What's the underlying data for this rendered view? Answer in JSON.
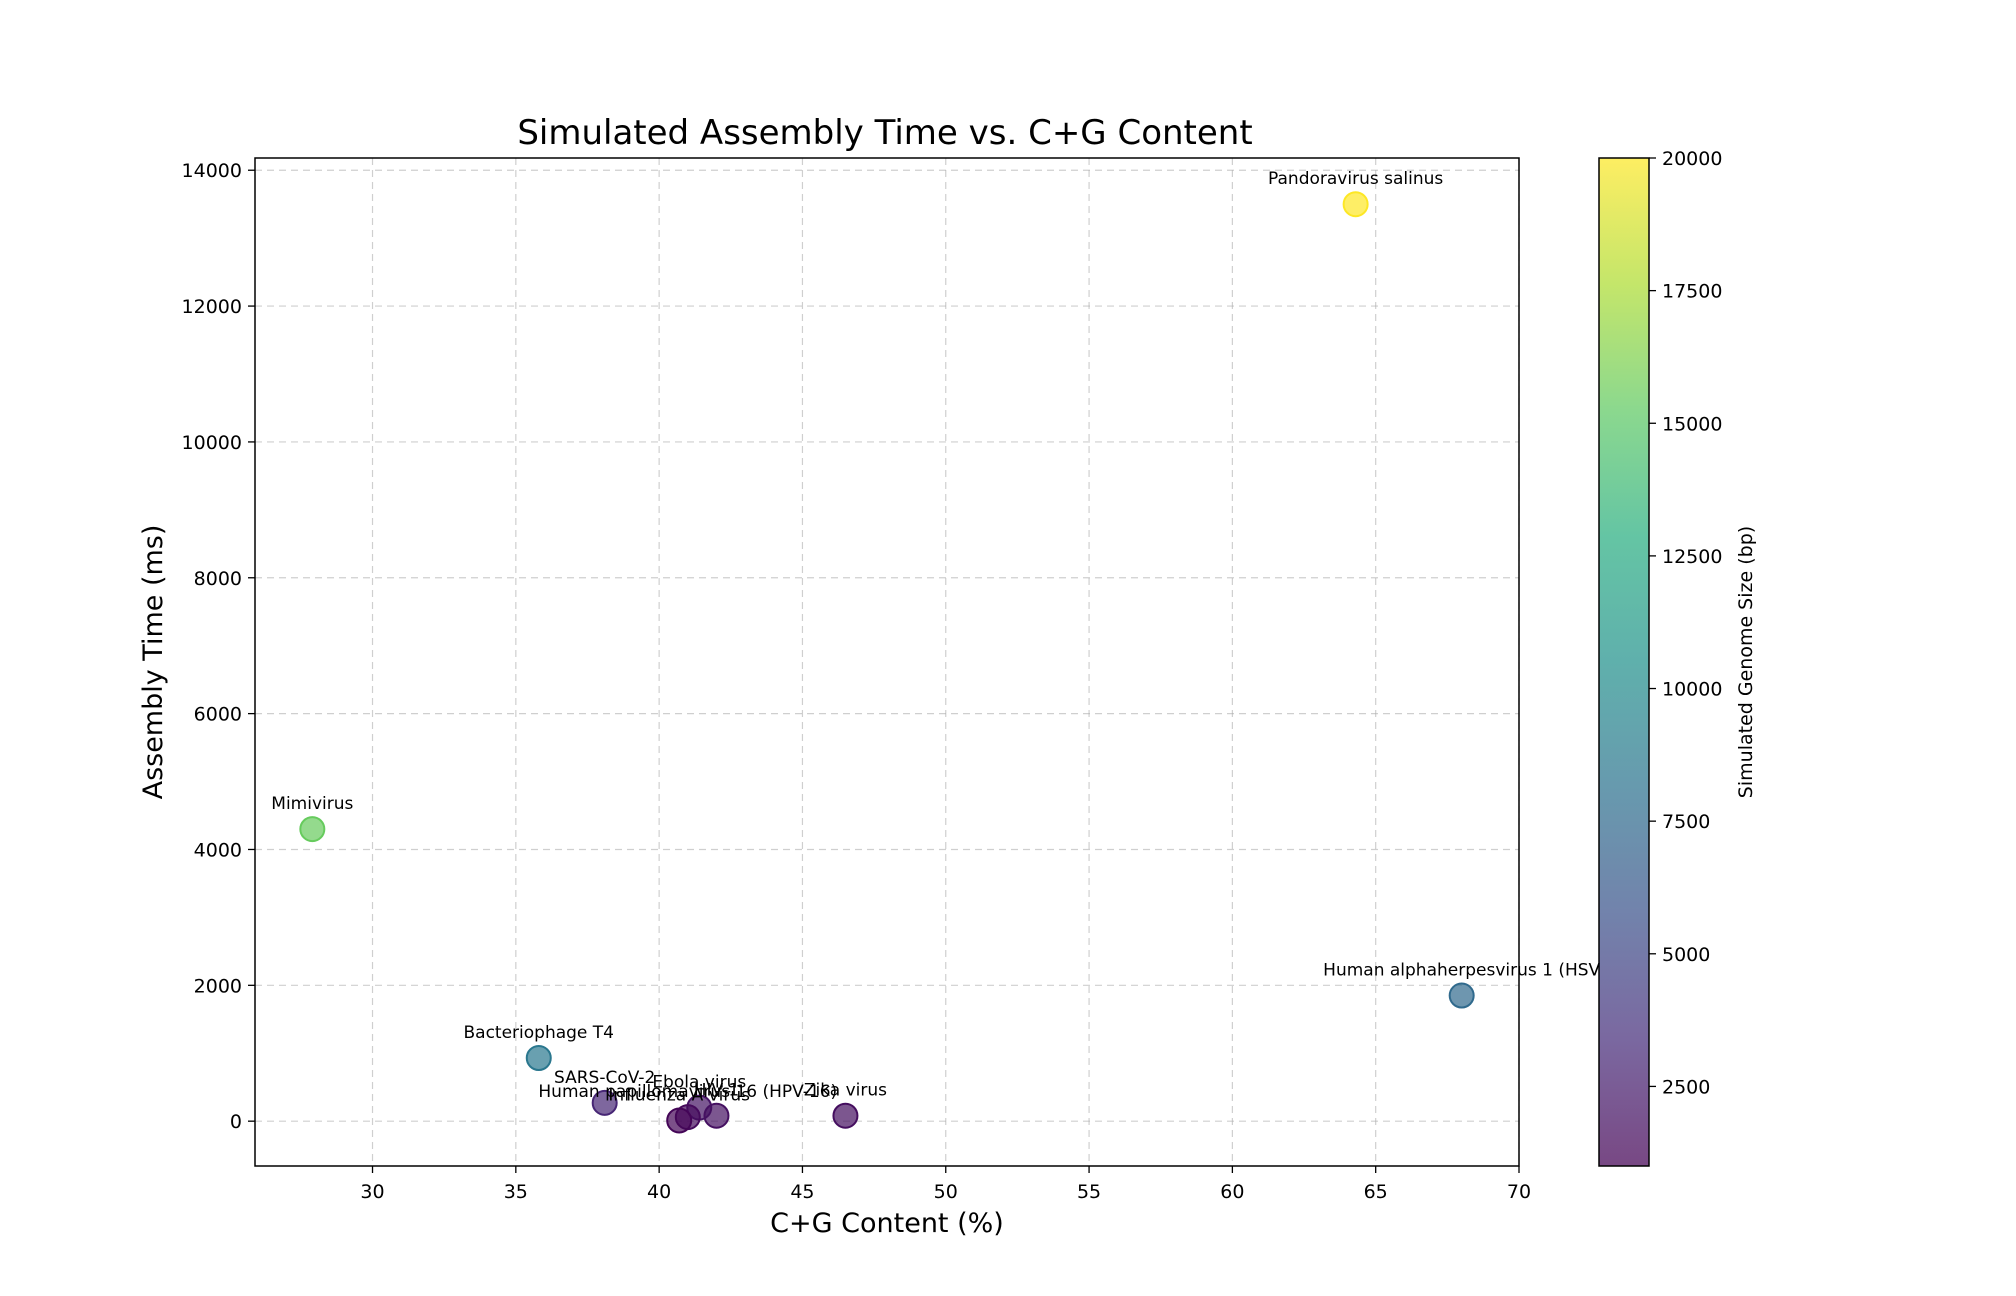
{
  "chart_data": {
    "type": "scatter",
    "title": "Simulated Assembly Time vs. C+G Content",
    "xlabel": "C+G Content (%)",
    "ylabel": "Assembly Time (ms)",
    "xlim": [
      25.9,
      70.0
    ],
    "ylim": [
      -660,
      14180
    ],
    "xticks": [
      30,
      35,
      40,
      45,
      50,
      55,
      60,
      65,
      70
    ],
    "yticks": [
      0,
      2000,
      4000,
      6000,
      8000,
      10000,
      12000,
      14000
    ],
    "grid": true,
    "colormap": "viridis",
    "colorbar": {
      "label": "Simulated Genome Size (bp)",
      "range": [
        1000,
        20000
      ],
      "ticks": [
        2500,
        5000,
        7500,
        10000,
        12500,
        15000,
        17500,
        20000
      ]
    },
    "points": [
      {
        "label": "Pandoravirus salinus",
        "x": 64.3,
        "y": 13500,
        "size": 20000
      },
      {
        "label": "Mimivirus",
        "x": 27.9,
        "y": 4300,
        "size": 15500
      },
      {
        "label": "Human alphaherpesvirus 1 (HSV",
        "x": 68.0,
        "y": 1850,
        "size": 7500
      },
      {
        "label": "Bacteriophage T4",
        "x": 35.8,
        "y": 930,
        "size": 8500
      },
      {
        "label": "SARS-CoV-2",
        "x": 38.1,
        "y": 270,
        "size": 3000
      },
      {
        "label": "Ebola virus",
        "x": 41.4,
        "y": 200,
        "size": 2000
      },
      {
        "label": "Human papillomavirus 16 (HPV-16)",
        "x": 41.0,
        "y": 60,
        "size": 1500
      },
      {
        "label": "Influenza A virus",
        "x": 40.7,
        "y": 10,
        "size": 1200
      },
      {
        "label": "HIV-1",
        "x": 42.0,
        "y": 80,
        "size": 1800
      },
      {
        "label": "Zika virus",
        "x": 46.5,
        "y": 80,
        "size": 1700
      }
    ]
  }
}
